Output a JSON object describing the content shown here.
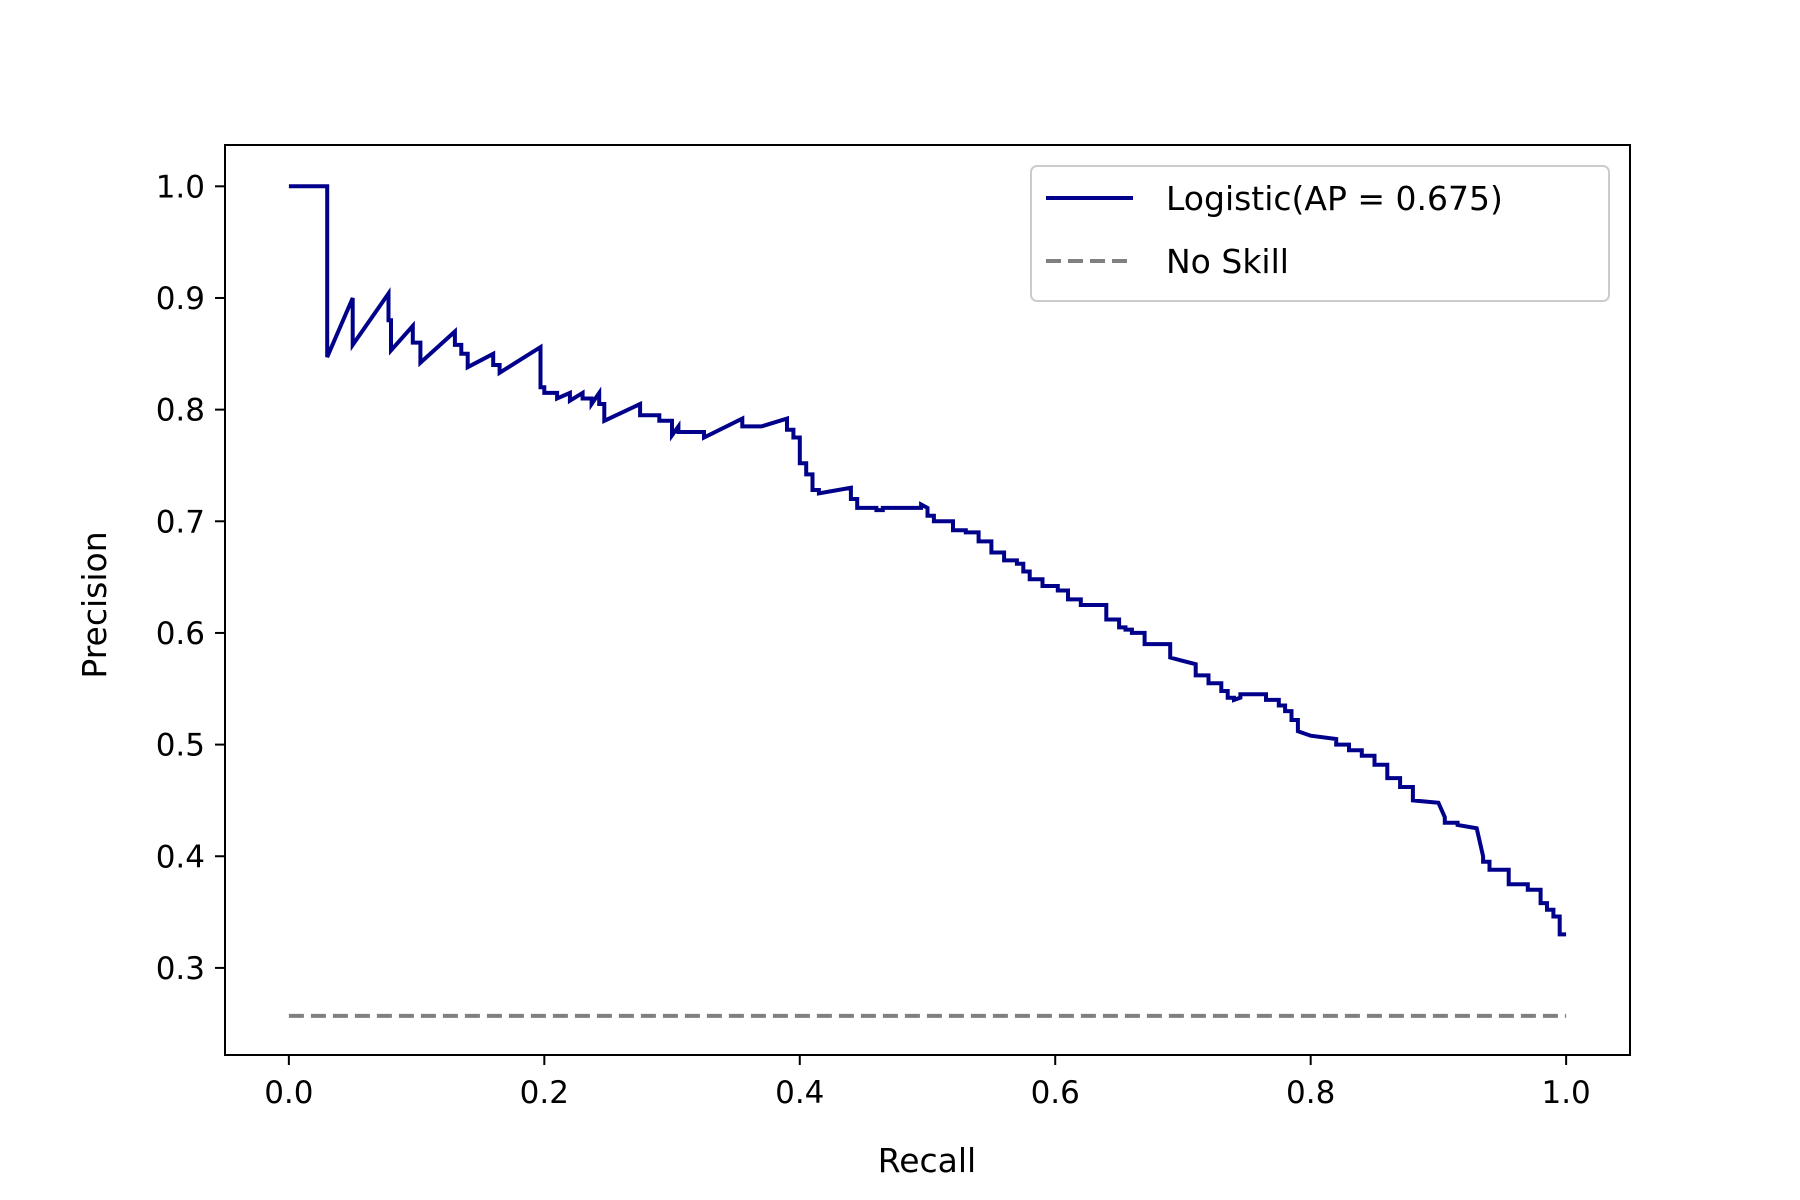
{
  "chart_data": {
    "type": "line",
    "title": "",
    "xlabel": "Recall",
    "ylabel": "Precision",
    "xlim": [
      -0.05,
      1.05
    ],
    "ylim": [
      0.222,
      1.037
    ],
    "x_ticks": [
      "0.0",
      "0.2",
      "0.4",
      "0.6",
      "0.8",
      "1.0"
    ],
    "y_ticks": [
      "0.3",
      "0.4",
      "0.5",
      "0.6",
      "0.7",
      "0.8",
      "0.9",
      "1.0"
    ],
    "grid": false,
    "legend_position": "top-right",
    "series": [
      {
        "name": "Logistic(AP = 0.675)",
        "style": "solid",
        "color": "#00008b",
        "x": [
          0.0,
          0.03,
          0.03,
          0.03,
          0.05,
          0.05,
          0.078,
          0.078,
          0.08,
          0.08,
          0.097,
          0.097,
          0.103,
          0.103,
          0.13,
          0.13,
          0.135,
          0.135,
          0.14,
          0.14,
          0.16,
          0.16,
          0.165,
          0.165,
          0.197,
          0.197,
          0.2,
          0.2,
          0.21,
          0.21,
          0.22,
          0.22,
          0.23,
          0.23,
          0.237,
          0.237,
          0.243,
          0.243,
          0.247,
          0.247,
          0.275,
          0.275,
          0.29,
          0.29,
          0.3,
          0.3,
          0.305,
          0.305,
          0.325,
          0.325,
          0.355,
          0.355,
          0.362,
          0.362,
          0.37,
          0.37,
          0.39,
          0.39,
          0.395,
          0.395,
          0.4,
          0.4,
          0.405,
          0.405,
          0.41,
          0.41,
          0.415,
          0.415,
          0.44,
          0.44,
          0.445,
          0.445,
          0.46,
          0.46,
          0.465,
          0.465,
          0.495,
          0.495,
          0.5,
          0.5,
          0.505,
          0.505,
          0.52,
          0.52,
          0.53,
          0.53,
          0.54,
          0.54,
          0.55,
          0.55,
          0.56,
          0.56,
          0.57,
          0.57,
          0.575,
          0.575,
          0.58,
          0.58,
          0.59,
          0.59,
          0.602,
          0.602,
          0.61,
          0.61,
          0.62,
          0.62,
          0.64,
          0.64,
          0.65,
          0.65,
          0.655,
          0.655,
          0.66,
          0.66,
          0.67,
          0.67,
          0.69,
          0.69,
          0.7,
          0.7,
          0.71,
          0.71,
          0.72,
          0.72,
          0.73,
          0.73,
          0.735,
          0.735,
          0.74,
          0.74,
          0.745,
          0.745,
          0.765,
          0.765,
          0.775,
          0.775,
          0.78,
          0.78,
          0.785,
          0.785,
          0.79,
          0.79,
          0.8,
          0.8,
          0.82,
          0.82,
          0.83,
          0.83,
          0.84,
          0.84,
          0.85,
          0.85,
          0.86,
          0.86,
          0.87,
          0.87,
          0.88,
          0.88,
          0.9,
          0.9,
          0.905,
          0.905,
          0.915,
          0.915,
          0.93,
          0.93,
          0.935,
          0.935,
          0.94,
          0.94,
          0.955,
          0.955,
          0.97,
          0.97,
          0.98,
          0.98,
          0.985,
          0.985,
          0.99,
          0.99,
          0.995,
          0.995,
          1.0
        ],
        "y": [
          1.0,
          1.0,
          0.847,
          0.847,
          0.9,
          0.858,
          0.904,
          0.88,
          0.88,
          0.853,
          0.875,
          0.86,
          0.86,
          0.842,
          0.87,
          0.858,
          0.858,
          0.85,
          0.85,
          0.838,
          0.85,
          0.84,
          0.84,
          0.833,
          0.856,
          0.82,
          0.82,
          0.815,
          0.815,
          0.81,
          0.815,
          0.808,
          0.815,
          0.81,
          0.81,
          0.805,
          0.815,
          0.805,
          0.805,
          0.79,
          0.805,
          0.795,
          0.795,
          0.79,
          0.79,
          0.777,
          0.785,
          0.78,
          0.78,
          0.775,
          0.792,
          0.785,
          0.785,
          0.785,
          0.785,
          0.785,
          0.792,
          0.782,
          0.782,
          0.775,
          0.775,
          0.752,
          0.752,
          0.742,
          0.742,
          0.728,
          0.728,
          0.725,
          0.73,
          0.72,
          0.72,
          0.712,
          0.712,
          0.71,
          0.71,
          0.712,
          0.712,
          0.715,
          0.712,
          0.705,
          0.705,
          0.7,
          0.7,
          0.692,
          0.692,
          0.69,
          0.69,
          0.682,
          0.682,
          0.672,
          0.672,
          0.665,
          0.665,
          0.662,
          0.662,
          0.655,
          0.655,
          0.648,
          0.648,
          0.642,
          0.642,
          0.638,
          0.638,
          0.63,
          0.63,
          0.625,
          0.625,
          0.612,
          0.612,
          0.605,
          0.605,
          0.603,
          0.603,
          0.6,
          0.6,
          0.59,
          0.59,
          0.578,
          0.575,
          0.575,
          0.572,
          0.562,
          0.562,
          0.555,
          0.555,
          0.548,
          0.548,
          0.542,
          0.542,
          0.54,
          0.542,
          0.545,
          0.545,
          0.54,
          0.54,
          0.535,
          0.535,
          0.53,
          0.53,
          0.522,
          0.522,
          0.512,
          0.508,
          0.508,
          0.505,
          0.5,
          0.5,
          0.495,
          0.495,
          0.49,
          0.49,
          0.482,
          0.482,
          0.47,
          0.47,
          0.462,
          0.462,
          0.45,
          0.448,
          0.448,
          0.435,
          0.43,
          0.43,
          0.428,
          0.425,
          0.425,
          0.4,
          0.395,
          0.395,
          0.388,
          0.388,
          0.375,
          0.375,
          0.37,
          0.37,
          0.358,
          0.358,
          0.352,
          0.352,
          0.346,
          0.346,
          0.33,
          0.33
        ]
      },
      {
        "name": "No Skill",
        "style": "dashed",
        "color": "#808080",
        "x": [
          0.0,
          1.0
        ],
        "y": [
          0.257,
          0.257
        ]
      }
    ]
  }
}
